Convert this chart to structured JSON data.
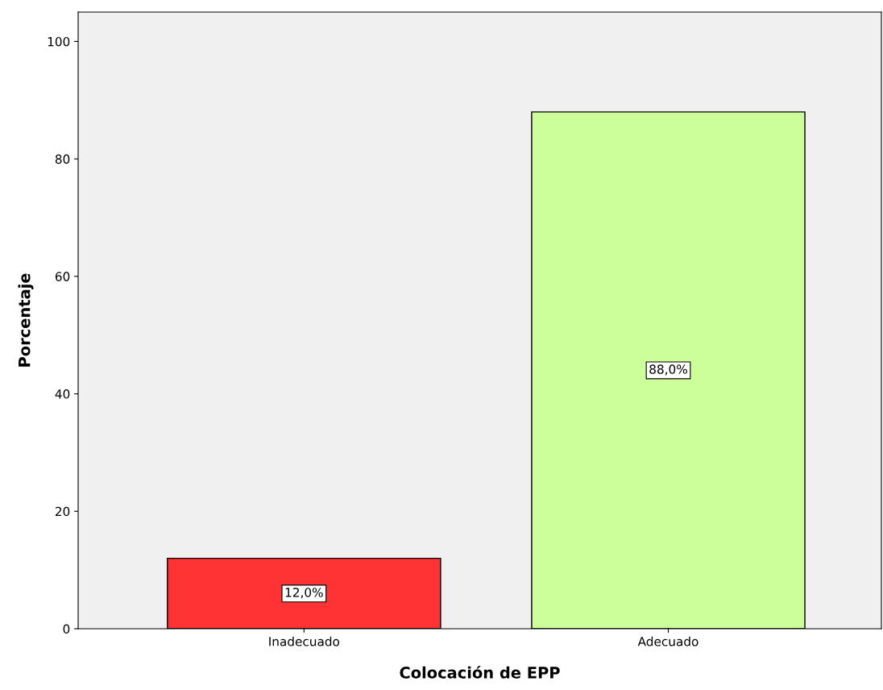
{
  "chart_data": {
    "type": "bar",
    "xlabel": "Colocación de EPP",
    "ylabel": "Porcentaje",
    "categories": [
      "Inadecuado",
      "Adecuado"
    ],
    "values": [
      12.0,
      88.0
    ],
    "colors": [
      "#ff3333",
      "#ccff99"
    ],
    "value_labels": [
      "12,0%",
      "88,0%"
    ],
    "ylim": [
      0,
      105
    ],
    "yticks": [
      0,
      20,
      40,
      60,
      80,
      100
    ],
    "grid": false
  }
}
